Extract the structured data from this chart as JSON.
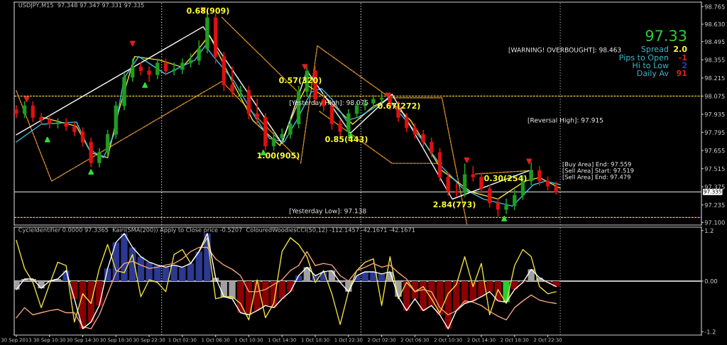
{
  "chart_data": [
    {
      "type": "candlestick",
      "title": "USDJPY,M15  97.348 97.347 97.331 97.335",
      "x": [
        "2013-09-30T06:30",
        "2013-09-30T07:30",
        "2013-09-30T08:30",
        "2013-09-30T09:30",
        "2013-09-30T10:30",
        "2013-09-30T11:30",
        "2013-09-30T12:30",
        "2013-09-30T13:30",
        "2013-09-30T14:30",
        "2013-09-30T15:30",
        "2013-09-30T16:30",
        "2013-09-30T17:30",
        "2013-09-30T18:30",
        "2013-09-30T19:30",
        "2013-09-30T20:30",
        "2013-09-30T21:30",
        "2013-09-30T22:30",
        "2013-09-30T23:30",
        "2013-10-01T00:30",
        "2013-10-01T01:30",
        "2013-10-01T02:30",
        "2013-10-01T03:30",
        "2013-10-01T04:30",
        "2013-10-01T05:30",
        "2013-10-01T06:30",
        "2013-10-01T07:30",
        "2013-10-01T08:30",
        "2013-10-01T09:30",
        "2013-10-01T10:30",
        "2013-10-01T11:30",
        "2013-10-01T12:30",
        "2013-10-01T13:30",
        "2013-10-01T14:30",
        "2013-10-01T15:30",
        "2013-10-01T16:30",
        "2013-10-01T17:30",
        "2013-10-01T18:30",
        "2013-10-01T19:30",
        "2013-10-01T20:30",
        "2013-10-01T21:30",
        "2013-10-01T22:30",
        "2013-10-01T23:30",
        "2013-10-02T00:30",
        "2013-10-02T01:30",
        "2013-10-02T02:30",
        "2013-10-02T03:30",
        "2013-10-02T04:30",
        "2013-10-02T05:30",
        "2013-10-02T06:30",
        "2013-10-02T07:30",
        "2013-10-02T08:30",
        "2013-10-02T09:30",
        "2013-10-02T10:30",
        "2013-10-02T11:30",
        "2013-10-02T12:30",
        "2013-10-02T13:30",
        "2013-10-02T14:30",
        "2013-10-02T15:30",
        "2013-10-02T16:30",
        "2013-10-02T17:30",
        "2013-10-02T18:30",
        "2013-10-02T19:30",
        "2013-10-02T20:30",
        "2013-10-02T21:30",
        "2013-10-02T22:30",
        "2013-10-02T23:30"
      ],
      "ohlc": [
        [
          97.97,
          98.0,
          97.91,
          97.94
        ],
        [
          97.94,
          98.03,
          97.91,
          98.0
        ],
        [
          98.0,
          98.03,
          97.88,
          97.91
        ],
        [
          97.91,
          97.94,
          97.86,
          97.89
        ],
        [
          97.89,
          97.92,
          97.83,
          97.86
        ],
        [
          97.86,
          97.9,
          97.83,
          97.87
        ],
        [
          97.87,
          97.9,
          97.81,
          97.84
        ],
        [
          97.84,
          97.87,
          97.77,
          97.8
        ],
        [
          97.8,
          97.83,
          97.69,
          97.72
        ],
        [
          97.72,
          97.75,
          97.53,
          97.56
        ],
        [
          97.56,
          97.67,
          97.53,
          97.64
        ],
        [
          97.64,
          97.81,
          97.61,
          97.78
        ],
        [
          97.78,
          98.03,
          97.75,
          98.0
        ],
        [
          98.0,
          98.25,
          97.97,
          98.22
        ],
        [
          98.22,
          98.36,
          98.19,
          98.3
        ],
        [
          98.3,
          98.33,
          98.24,
          98.27
        ],
        [
          98.27,
          98.3,
          98.19,
          98.24
        ],
        [
          98.24,
          98.36,
          98.21,
          98.33
        ],
        [
          98.33,
          98.36,
          98.24,
          98.27
        ],
        [
          98.27,
          98.33,
          98.24,
          98.28
        ],
        [
          98.28,
          98.36,
          98.25,
          98.33
        ],
        [
          98.33,
          98.4,
          98.3,
          98.35
        ],
        [
          98.35,
          98.5,
          98.32,
          98.44
        ],
        [
          98.44,
          98.73,
          98.41,
          98.68
        ],
        [
          98.68,
          98.71,
          98.33,
          98.38
        ],
        [
          98.38,
          98.41,
          98.12,
          98.16
        ],
        [
          98.16,
          98.3,
          98.07,
          98.11
        ],
        [
          98.11,
          98.15,
          98.06,
          98.12
        ],
        [
          98.12,
          98.15,
          97.9,
          97.94
        ],
        [
          97.94,
          98.05,
          97.86,
          97.91
        ],
        [
          97.91,
          97.94,
          97.66,
          97.69
        ],
        [
          97.69,
          97.8,
          97.66,
          97.75
        ],
        [
          97.75,
          97.82,
          97.72,
          97.78
        ],
        [
          97.78,
          97.9,
          97.75,
          97.86
        ],
        [
          97.86,
          98.15,
          97.83,
          98.11
        ],
        [
          98.11,
          98.3,
          98.08,
          98.27
        ],
        [
          98.27,
          98.3,
          98.01,
          98.05
        ],
        [
          98.05,
          98.09,
          97.96,
          98.0
        ],
        [
          98.0,
          98.03,
          97.82,
          97.86
        ],
        [
          97.86,
          97.89,
          97.77,
          97.8
        ],
        [
          97.8,
          97.97,
          97.77,
          97.94
        ],
        [
          97.94,
          98.03,
          97.91,
          98.0
        ],
        [
          98.0,
          98.05,
          97.97,
          98.02
        ],
        [
          98.02,
          98.08,
          97.99,
          98.05
        ],
        [
          98.05,
          98.1,
          98.02,
          98.06
        ],
        [
          98.06,
          98.09,
          97.97,
          98.0
        ],
        [
          98.0,
          98.03,
          97.88,
          97.91
        ],
        [
          97.91,
          97.94,
          97.8,
          97.83
        ],
        [
          97.83,
          97.86,
          97.75,
          97.78
        ],
        [
          97.78,
          97.81,
          97.69,
          97.72
        ],
        [
          97.72,
          97.75,
          97.61,
          97.64
        ],
        [
          97.64,
          97.67,
          97.42,
          97.45
        ],
        [
          97.45,
          97.48,
          97.31,
          97.34
        ],
        [
          97.34,
          97.4,
          97.3,
          97.33
        ],
        [
          97.33,
          97.55,
          97.3,
          97.47
        ],
        [
          97.47,
          97.53,
          97.42,
          97.45
        ],
        [
          97.45,
          97.48,
          97.33,
          97.36
        ],
        [
          97.36,
          97.39,
          97.22,
          97.25
        ],
        [
          97.25,
          97.28,
          97.15,
          97.2
        ],
        [
          97.2,
          97.28,
          97.17,
          97.23
        ],
        [
          97.23,
          97.35,
          97.2,
          97.31
        ],
        [
          97.31,
          97.46,
          97.28,
          97.42
        ],
        [
          97.42,
          97.56,
          97.39,
          97.5
        ],
        [
          97.5,
          97.53,
          97.39,
          97.42
        ],
        [
          97.42,
          97.45,
          97.35,
          97.38
        ],
        [
          97.38,
          97.41,
          97.32,
          97.335
        ]
      ],
      "colors": [
        "#e01010",
        "#1f9e1f",
        "#e01010",
        "#e01010",
        "#e01010",
        "#1f9e1f",
        "#e01010",
        "#e01010",
        "#e01010",
        "#e01010",
        "#1f9e1f",
        "#1f9e1f",
        "#1f9e1f",
        "#1f9e1f",
        "#1f9e1f",
        "#e01010",
        "#e01010",
        "#1f9e1f",
        "#e01010",
        "#1f9e1f",
        "#1f9e1f",
        "#1f9e1f",
        "#1f9e1f",
        "#1f9e1f",
        "#e01010",
        "#e01010",
        "#e01010",
        "#1f9e1f",
        "#e01010",
        "#e01010",
        "#e01010",
        "#1f9e1f",
        "#1f9e1f",
        "#1f9e1f",
        "#1f9e1f",
        "#1f9e1f",
        "#e01010",
        "#e01010",
        "#e01010",
        "#e01010",
        "#1f9e1f",
        "#1f9e1f",
        "#1f9e1f",
        "#1f9e1f",
        "#1f9e1f",
        "#e01010",
        "#e01010",
        "#e01010",
        "#e01010",
        "#e01010",
        "#e01010",
        "#e01010",
        "#e01010",
        "#e01010",
        "#1f9e1f",
        "#e01010",
        "#e01010",
        "#e01010",
        "#e01010",
        "#1f9e1f",
        "#1f9e1f",
        "#1f9e1f",
        "#1f9e1f",
        "#e01010",
        "#e01010",
        "#e01010"
      ],
      "series": [
        {
          "type": "line",
          "color": "#f0e040",
          "x": [
            "2013-09-30T09:30",
            "2013-09-30T13:45",
            "2013-09-30T15:30",
            "2013-09-30T17:30",
            "2013-09-30T18:45",
            "2013-09-30T20:45",
            "2013-09-30T23:45",
            "2013-10-01T02:30",
            "2013-10-01T04:45",
            "2013-10-01T05:45",
            "2013-10-01T08:30",
            "2013-10-01T11:00",
            "2013-10-01T14:15",
            "2013-10-01T16:15",
            "2013-10-01T17:30",
            "2013-10-01T20:00",
            "2013-10-01T23:00",
            "2013-10-02T01:30",
            "2013-10-02T03:15",
            "2013-10-02T06:00",
            "2013-10-02T09:45",
            "2013-10-02T13:15",
            "2013-10-02T16:30",
            "2013-10-02T19:45",
            "2013-10-02T21:30",
            "2013-10-03T00:00"
          ],
          "values": [
            97.913,
            97.842,
            97.638,
            97.6,
            97.941,
            98.38,
            98.353,
            98.298,
            98.463,
            98.545,
            98.188,
            97.886,
            97.693,
            97.996,
            98.161,
            98.051,
            97.858,
            97.996,
            98.051,
            97.886,
            97.501,
            97.336,
            97.281,
            97.419,
            97.446,
            97.364
          ]
        },
        {
          "type": "line",
          "color": "#40c0e8",
          "x": [
            "2013-09-30T06:30",
            "2013-09-30T09:30",
            "2013-09-30T13:45",
            "2013-09-30T15:15",
            "2013-09-30T17:00",
            "2013-09-30T18:15",
            "2013-09-30T19:30",
            "2013-09-30T21:15",
            "2013-10-01T00:30",
            "2013-10-01T04:00",
            "2013-10-01T05:15",
            "2013-10-01T06:15",
            "2013-10-01T08:45",
            "2013-10-01T11:15",
            "2013-10-01T13:00",
            "2013-10-01T14:45",
            "2013-10-01T16:15",
            "2013-10-01T18:00",
            "2013-10-01T19:15",
            "2013-10-01T20:30",
            "2013-10-01T22:15",
            "2013-10-01T23:45",
            "2013-10-02T03:15",
            "2013-10-02T07:15",
            "2013-10-02T09:45",
            "2013-10-02T12:15",
            "2013-10-02T14:45",
            "2013-10-02T18:15",
            "2013-10-02T20:45",
            "2013-10-02T22:15",
            "2013-10-03T00:00"
          ],
          "values": [
            97.721,
            97.858,
            97.875,
            97.666,
            97.6,
            97.776,
            98.216,
            98.38,
            98.243,
            98.353,
            98.463,
            98.38,
            98.188,
            97.913,
            97.748,
            97.721,
            97.886,
            98.106,
            98.133,
            98.051,
            97.886,
            97.913,
            98.051,
            97.748,
            97.529,
            97.364,
            97.281,
            97.226,
            97.391,
            97.419,
            97.391
          ]
        },
        {
          "type": "line",
          "color": "#f4f4f4",
          "x": [
            "2013-09-30T06:30",
            "2013-10-01T05:00",
            "2013-10-01T14:30",
            "2013-10-01T17:30",
            "2013-10-01T22:45",
            "2013-10-02T03:45",
            "2013-10-02T11:00",
            "2013-10-02T20:15"
          ],
          "values": [
            97.776,
            98.61,
            97.71,
            98.27,
            97.79,
            98.09,
            97.28,
            97.5
          ]
        },
        {
          "type": "line",
          "color": "#d08a2e",
          "line_style": "dashed",
          "x": [
            "2013-09-30T06:30",
            "2013-09-30T10:45",
            "2013-10-01T07:15",
            "2013-10-01T16:30"
          ],
          "values": [
            98.117,
            97.419,
            98.188,
            97.584
          ]
        },
        {
          "type": "line",
          "color": "#d08a2e",
          "line_style": "dashed",
          "x": [
            "2013-10-01T07:15",
            "2013-10-01T16:15"
          ],
          "values": [
            98.683,
            98.117
          ]
        },
        {
          "type": "line",
          "color": "#d08a2e",
          "line_style": "dashed",
          "x": [
            "2013-10-01T16:45",
            "2013-10-01T18:45",
            "2013-10-02T03:30",
            "2013-10-02T09:45",
            "2013-10-02T12:45"
          ],
          "values": [
            97.556,
            98.463,
            98.062,
            98.062,
            97.089
          ]
        },
        {
          "type": "line",
          "color": "#d08a2e",
          "line_style": "dashed",
          "x": [
            "2013-10-01T19:00",
            "2013-10-02T03:45",
            "2013-10-02T09:45"
          ],
          "values": [
            97.957,
            97.556,
            97.556
          ]
        },
        {
          "type": "line",
          "color": "#d08a2e",
          "line_style": "dashed",
          "x": [
            "2013-10-02T13:45",
            "2013-10-02T20:45"
          ],
          "values": [
            97.474,
            97.501
          ]
        },
        {
          "type": "scatter",
          "color": "#e02020",
          "marker": "triangle_down",
          "x": [
            "2013-09-30T07:45",
            "2013-09-30T20:30",
            "2013-10-01T05:00",
            "2013-10-01T17:15",
            "2013-10-02T03:15",
            "2013-10-02T12:45",
            "2013-10-02T20:15"
          ],
          "values": [
            98.05,
            98.48,
            98.74,
            98.3,
            98.08,
            97.58,
            97.57
          ]
        },
        {
          "type": "scatter",
          "color": "#30e030",
          "marker": "triangle",
          "x": [
            "2013-09-30T10:15",
            "2013-09-30T15:30",
            "2013-09-30T22:00",
            "2013-10-01T12:15",
            "2013-10-01T22:45",
            "2013-10-02T17:15"
          ],
          "values": [
            97.74,
            97.49,
            98.16,
            97.64,
            97.77,
            97.13
          ]
        }
      ],
      "xlim": [
        "2013-09-30T06:15",
        "2013-10-03T17:00"
      ],
      "ylim": [
        97.08,
        98.8
      ],
      "yticks": [
        {
          "value": 97.1,
          "label": "97.100"
        },
        {
          "value": 97.235,
          "label": "97.235"
        },
        {
          "value": 97.375,
          "label": "97.375"
        },
        {
          "value": 97.515,
          "label": "97.515"
        },
        {
          "value": 97.655,
          "label": "97.655"
        },
        {
          "value": 97.795,
          "label": "97.795"
        },
        {
          "value": 97.935,
          "label": "97.935"
        },
        {
          "value": 98.075,
          "label": "98.075"
        },
        {
          "value": 98.215,
          "label": "98.215"
        },
        {
          "value": 98.355,
          "label": "98.355"
        },
        {
          "value": 98.495,
          "label": "98.495"
        },
        {
          "value": 98.63,
          "label": "98.630"
        },
        {
          "value": 98.765,
          "label": "98.765"
        }
      ],
      "tick_labels": "y",
      "ref_lines": [
        {
          "axis": "y",
          "value": 98.075,
          "label": "[Yesterday High]: 98.075",
          "color": "#e8c040",
          "line_style": "dashed"
        },
        {
          "axis": "y",
          "value": 97.138,
          "label": "[Yesterday Low]: 97.138",
          "color": "#e8c040",
          "line_style": "dashed"
        },
        {
          "axis": "y",
          "value": 97.335,
          "label": "97.335",
          "color": "#c0c0c0",
          "line_style": "solid"
        },
        {
          "axis": "x",
          "value": "2013-10-01T00:00",
          "color": "#d0d0d0",
          "line_style": "dotted"
        },
        {
          "axis": "x",
          "value": "2013-10-02T00:00",
          "color": "#d0d0d0",
          "line_style": "dotted"
        },
        {
          "axis": "x",
          "value": "2013-10-03T00:00",
          "color": "#a0a0a0",
          "line_style": "dotted"
        }
      ],
      "annotations": [
        "0.68(909)",
        "1.00(905)",
        "0.57(320)",
        "0.85(443)",
        "0.67(272)",
        "2.84(773)",
        "0.30(254)",
        "[WARNING! OVERBOUGHT]: 98.463",
        "[Reversal High]: 97.915",
        "[Buy Area] End: 97.559",
        "[Sell Area] Start: 97.519",
        "[Sell Area] End: 97.479",
        "97.33",
        "Spread",
        "2.0",
        "Pips to Open",
        "-1",
        "Hi to Low",
        "2",
        "Daily Av",
        "91"
      ]
    },
    {
      "type": "line",
      "title": "CycleIdentifier 0.0000 97.3365  Kairi(SMA(200)) Apply to Close price -0.5207  ColouredWoodiesCCI(50,12) -112.1457 -42.1671 -42.1671",
      "x": [
        "2013-09-30T06:30",
        "2013-09-30T07:30",
        "2013-09-30T08:30",
        "2013-09-30T09:30",
        "2013-09-30T10:30",
        "2013-09-30T11:30",
        "2013-09-30T12:30",
        "2013-09-30T13:30",
        "2013-09-30T14:30",
        "2013-09-30T15:30",
        "2013-09-30T16:30",
        "2013-09-30T17:30",
        "2013-09-30T18:30",
        "2013-09-30T19:30",
        "2013-09-30T20:30",
        "2013-09-30T21:30",
        "2013-09-30T22:30",
        "2013-09-30T23:30",
        "2013-10-01T00:30",
        "2013-10-01T01:30",
        "2013-10-01T02:30",
        "2013-10-01T03:30",
        "2013-10-01T04:30",
        "2013-10-01T05:30",
        "2013-10-01T06:30",
        "2013-10-01T07:30",
        "2013-10-01T08:30",
        "2013-10-01T09:30",
        "2013-10-01T10:30",
        "2013-10-01T11:30",
        "2013-10-01T12:30",
        "2013-10-01T13:30",
        "2013-10-01T14:30",
        "2013-10-01T15:30",
        "2013-10-01T16:30",
        "2013-10-01T17:30",
        "2013-10-01T18:30",
        "2013-10-01T19:30",
        "2013-10-01T20:30",
        "2013-10-01T21:30",
        "2013-10-01T22:30",
        "2013-10-01T23:30",
        "2013-10-02T00:30",
        "2013-10-02T01:30",
        "2013-10-02T02:30",
        "2013-10-02T03:30",
        "2013-10-02T04:30",
        "2013-10-02T05:30",
        "2013-10-02T06:30",
        "2013-10-02T07:30",
        "2013-10-02T08:30",
        "2013-10-02T09:30",
        "2013-10-02T10:30",
        "2013-10-02T11:30",
        "2013-10-02T12:30",
        "2013-10-02T13:30",
        "2013-10-02T14:30",
        "2013-10-02T15:30",
        "2013-10-02T16:30",
        "2013-10-02T17:30",
        "2013-10-02T18:30",
        "2013-10-02T19:30",
        "2013-10-02T20:30",
        "2013-10-02T21:30",
        "2013-10-02T22:30",
        "2013-10-02T23:30"
      ],
      "series": [
        {
          "type": "bar",
          "values": [
            -0.2,
            0.05,
            0.05,
            -0.17,
            0,
            0.05,
            0.25,
            -0.42,
            -1.13,
            -0.97,
            -0.58,
            0.3,
            0.92,
            1.13,
            0.8,
            0.58,
            0.45,
            0.38,
            0.33,
            0.38,
            0.33,
            0.42,
            0.7,
            1.13,
            0.08,
            -0.37,
            -0.42,
            -0.75,
            -0.8,
            -0.7,
            -0.58,
            -0.63,
            -0.42,
            -0.25,
            0.13,
            0.33,
            0.13,
            0.22,
            0.25,
            -0.03,
            -0.25,
            0.13,
            0.22,
            0.22,
            0.17,
            0.22,
            -0.37,
            -0.7,
            -0.42,
            -0.7,
            -0.58,
            -0.8,
            -1.13,
            -0.7,
            -0.53,
            -0.47,
            -0.37,
            -0.25,
            -0.47,
            -0.5,
            -0.2,
            -0.03,
            0.28,
            0.08,
            -0.03,
            -0.13
          ],
          "colors": [
            "#a0a0a0",
            "#a0a0a0",
            "#a0a0a0",
            "#a0a0a0",
            "#a0a0a0",
            "#a0a0a0",
            "#2b3990",
            "#8b0000",
            "#8b0000",
            "#8b0000",
            "#8b0000",
            "#2b3990",
            "#2b3990",
            "#2b3990",
            "#2b3990",
            "#2b3990",
            "#2b3990",
            "#2b3990",
            "#2b3990",
            "#2b3990",
            "#2b3990",
            "#2b3990",
            "#2b3990",
            "#2b3990",
            "#a0a0a0",
            "#a0a0a0",
            "#a0a0a0",
            "#8b0000",
            "#8b0000",
            "#8b0000",
            "#8b0000",
            "#8b0000",
            "#8b0000",
            "#8b0000",
            "#2b3990",
            "#a0a0a0",
            "#2b3990",
            "#2b3990",
            "#a0a0a0",
            "#a0a0a0",
            "#a0a0a0",
            "#2b3990",
            "#2b3990",
            "#2b3990",
            "#2b3990",
            "#a0a0a0",
            "#a0a0a0",
            "#8b0000",
            "#8b0000",
            "#8b0000",
            "#8b0000",
            "#8b0000",
            "#8b0000",
            "#8b0000",
            "#8b0000",
            "#8b0000",
            "#8b0000",
            "#8b0000",
            "#8b0000",
            "#2ecc2e",
            "#8b0000",
            "#8b0000",
            "#a0a0a0",
            "#a0a0a0",
            "#8b0000",
            "#8b0000"
          ]
        },
        {
          "type": "line",
          "color": "#f0e040",
          "values": [
            0.97,
            0.3,
            -0.03,
            -0.63,
            -0.08,
            0.45,
            0.37,
            -0.97,
            -0.3,
            -0.53,
            0.3,
            0.87,
            0.25,
            0.2,
            0.63,
            -0.37,
            0.03,
            -0.03,
            -0.25,
            0.63,
            0.75,
            0.42,
            0.7,
            1.03,
            -0.42,
            -0.37,
            -0.37,
            -0.53,
            -0.92,
            0.03,
            -0.87,
            -0.53,
            0.7,
            1.03,
            0.87,
            0.58,
            -0.03,
            0.25,
            -0.3,
            -1.03,
            -0.25,
            0.25,
            0.45,
            0.53,
            -0.58,
            0.58,
            -0.42,
            -0.03,
            -0.25,
            -0.13,
            -0.42,
            -0.75,
            -0.3,
            -0.08,
            0.58,
            -0.13,
            0.42,
            -0.8,
            -0.2,
            -0.53,
            0.37,
            0.75,
            0.58,
            -0.13,
            -0.3,
            -0.25
          ]
        },
        {
          "type": "line",
          "color": "#f4a582",
          "values": [
            -0.87,
            -0.63,
            -0.8,
            -0.75,
            -0.7,
            -0.67,
            -0.75,
            -0.75,
            -1.08,
            -1.13,
            -0.8,
            -0.3,
            0.2,
            0.42,
            0.47,
            0.38,
            0.3,
            0.33,
            0.38,
            0.42,
            0.53,
            0.7,
            0.8,
            0.8,
            0.53,
            0.38,
            0.28,
            0.13,
            -0.25,
            -0.25,
            -0.2,
            -0.08,
            0.03,
            0.25,
            0.37,
            0.7,
            0.37,
            0.42,
            0.38,
            0.13,
            0,
            0.25,
            0.33,
            0.42,
            0.33,
            0.38,
            0.2,
            0.05,
            -0.25,
            -0.2,
            -0.25,
            -0.63,
            -0.8,
            -0.7,
            -0.47,
            -0.5,
            -0.58,
            -0.72,
            -0.83,
            -0.92,
            -0.63,
            -0.47,
            -0.33,
            -0.45,
            -0.5,
            -0.53
          ]
        },
        {
          "type": "line",
          "color": "#ffffff",
          "values": [
            -0.2,
            0.05,
            0.05,
            -0.17,
            0,
            0.05,
            0.25,
            -0.42,
            -1.13,
            -0.97,
            -0.58,
            0.3,
            0.92,
            1.13,
            0.8,
            0.58,
            0.45,
            0.38,
            0.33,
            0.38,
            0.33,
            0.42,
            0.7,
            1.13,
            0.08,
            -0.37,
            -0.42,
            -0.75,
            -0.8,
            -0.7,
            -0.58,
            -0.63,
            -0.42,
            -0.25,
            0.13,
            0.33,
            0.13,
            0.22,
            0.25,
            -0.03,
            -0.25,
            0.13,
            0.22,
            0.22,
            0.17,
            0.22,
            -0.37,
            -0.7,
            -0.42,
            -0.7,
            -0.58,
            -0.8,
            -1.13,
            -0.7,
            -0.53,
            -0.47,
            -0.37,
            -0.25,
            -0.47,
            -0.5,
            -0.2,
            -0.03,
            0.28,
            0.08,
            -0.03,
            -0.13
          ]
        }
      ],
      "xlim": [
        "2013-09-30T06:15",
        "2013-10-03T17:00"
      ],
      "ylim": [
        -1.28,
        1.28
      ],
      "xticks": [
        {
          "value": "2013-09-30T06:30",
          "label": "30 Sep 2013"
        },
        {
          "value": "2013-09-30T10:30",
          "label": "30 Sep 10:30"
        },
        {
          "value": "2013-09-30T14:30",
          "label": "30 Sep 14:30"
        },
        {
          "value": "2013-09-30T18:30",
          "label": "30 Sep 18:30"
        },
        {
          "value": "2013-09-30T22:30",
          "label": "30 Sep 22:30"
        },
        {
          "value": "2013-10-01T02:30",
          "label": "1 Oct 02:30"
        },
        {
          "value": "2013-10-01T06:30",
          "label": "1 Oct 06:30"
        },
        {
          "value": "2013-10-01T10:30",
          "label": "1 Oct 10:30"
        },
        {
          "value": "2013-10-01T14:30",
          "label": "1 Oct 14:30"
        },
        {
          "value": "2013-10-01T18:30",
          "label": "1 Oct 18:30"
        },
        {
          "value": "2013-10-01T22:30",
          "label": "1 Oct 22:30"
        },
        {
          "value": "2013-10-02T02:30",
          "label": "2 Oct 02:30"
        },
        {
          "value": "2013-10-02T06:30",
          "label": "2 Oct 06:30"
        },
        {
          "value": "2013-10-02T10:30",
          "label": "2 Oct 10:30"
        },
        {
          "value": "2013-10-02T14:30",
          "label": "2 Oct 14:30"
        },
        {
          "value": "2013-10-02T18:30",
          "label": "2 Oct 18:30"
        },
        {
          "value": "2013-10-02T22:30",
          "label": "2 Oct 22:30"
        }
      ],
      "yticks": [
        {
          "value": 1.2,
          "label": "1.2"
        },
        {
          "value": 0,
          "label": "0.00"
        },
        {
          "value": -1.2,
          "label": "-1.2"
        }
      ],
      "ref_lines": [
        {
          "axis": "y",
          "value": 0,
          "color": "#ffffff",
          "line_style": "solid"
        },
        {
          "axis": "x",
          "value": "2013-10-01T00:00",
          "color": "#d0d0d0",
          "line_style": "dotted"
        },
        {
          "axis": "x",
          "value": "2013-10-02T00:00",
          "color": "#d0d0d0",
          "line_style": "dotted"
        },
        {
          "axis": "x",
          "value": "2013-10-03T00:00",
          "color": "#a0a0a0",
          "line_style": "dotted"
        }
      ]
    }
  ]
}
